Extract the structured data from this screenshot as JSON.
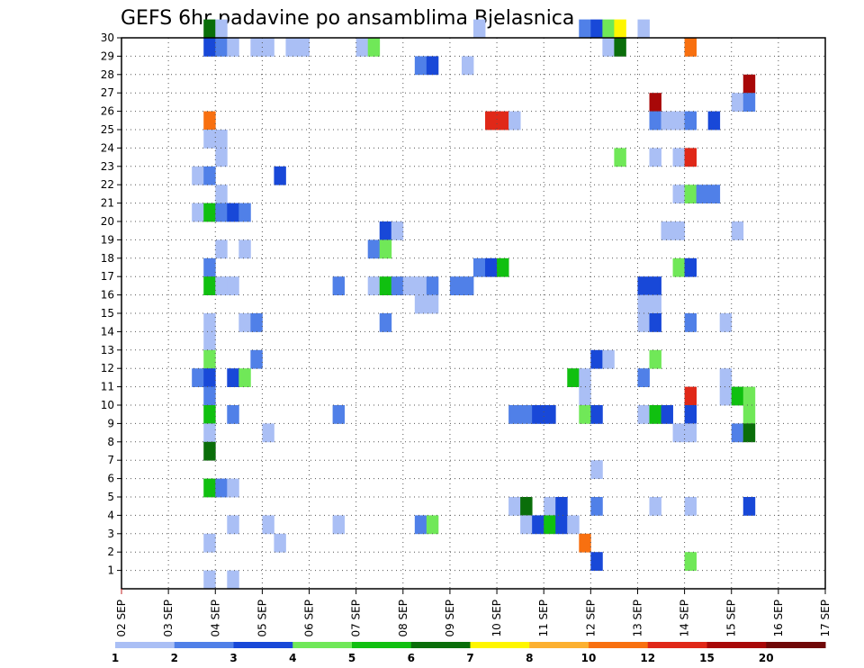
{
  "chart_data": {
    "type": "heatmap",
    "title": "GEFS 6hr padavine po ansamblima Bjelasnica",
    "xlabel": "",
    "ylabel": "",
    "x_tick_labels": [
      "02 SEP",
      "03 SEP",
      "04 SEP",
      "05 SEP",
      "06 SEP",
      "07 SEP",
      "08 SEP",
      "09 SEP",
      "10 SEP",
      "11 SEP",
      "12 SEP",
      "13 SEP",
      "14 SEP",
      "15 SEP",
      "16 SEP",
      "17 SEP"
    ],
    "y_tick_labels": [
      "1",
      "2",
      "3",
      "4",
      "5",
      "6",
      "7",
      "8",
      "9",
      "10",
      "11",
      "12",
      "13",
      "14",
      "15",
      "16",
      "17",
      "18",
      "19",
      "20",
      "21",
      "22",
      "23",
      "24",
      "25",
      "26",
      "27",
      "28",
      "29",
      "30"
    ],
    "x_range_days": [
      0,
      15
    ],
    "y_range": [
      0,
      30
    ],
    "step_per_day": 4,
    "grid": true,
    "legend": {
      "position": "bottom",
      "labels": [
        "1",
        "2",
        "3",
        "4",
        "5",
        "6",
        "7",
        "8",
        "10",
        "12",
        "15",
        "20"
      ],
      "colors": [
        "#aabff5",
        "#5080e8",
        "#1848d8",
        "#70e858",
        "#10c010",
        "#0a6e0a",
        "#fff600",
        "#fcb030",
        "#f87010",
        "#e02818",
        "#a80808",
        "#700808"
      ]
    },
    "cells": [
      [
        7,
        30,
        5
      ],
      [
        8,
        30,
        0
      ],
      [
        30,
        30,
        0
      ],
      [
        39,
        30,
        1
      ],
      [
        40,
        30,
        2
      ],
      [
        41,
        30,
        3
      ],
      [
        42,
        30,
        6
      ],
      [
        44,
        30,
        0
      ],
      [
        7,
        29,
        2
      ],
      [
        8,
        29,
        1
      ],
      [
        9,
        29,
        0
      ],
      [
        11,
        29,
        0
      ],
      [
        12,
        29,
        0
      ],
      [
        14,
        29,
        0
      ],
      [
        15,
        29,
        0
      ],
      [
        20,
        29,
        0
      ],
      [
        21,
        29,
        3
      ],
      [
        41,
        29,
        0
      ],
      [
        42,
        29,
        5
      ],
      [
        48,
        29,
        8
      ],
      [
        25,
        28,
        1
      ],
      [
        26,
        28,
        2
      ],
      [
        29,
        28,
        0
      ],
      [
        53,
        27,
        10
      ],
      [
        45,
        26,
        10
      ],
      [
        52,
        26,
        0
      ],
      [
        53,
        26,
        1
      ],
      [
        7,
        25,
        8
      ],
      [
        31,
        25,
        9
      ],
      [
        32,
        25,
        9
      ],
      [
        33,
        25,
        0
      ],
      [
        45,
        25,
        1
      ],
      [
        46,
        25,
        0
      ],
      [
        47,
        25,
        0
      ],
      [
        48,
        25,
        1
      ],
      [
        50,
        25,
        2
      ],
      [
        7,
        24,
        0
      ],
      [
        8,
        24,
        0
      ],
      [
        8,
        23,
        0
      ],
      [
        42,
        23,
        3
      ],
      [
        45,
        23,
        0
      ],
      [
        47,
        23,
        0
      ],
      [
        48,
        23,
        9
      ],
      [
        6,
        22,
        0
      ],
      [
        7,
        22,
        1
      ],
      [
        13,
        22,
        2
      ],
      [
        8,
        21,
        0
      ],
      [
        47,
        21,
        0
      ],
      [
        48,
        21,
        3
      ],
      [
        49,
        21,
        1
      ],
      [
        50,
        21,
        1
      ],
      [
        6,
        20,
        0
      ],
      [
        7,
        20,
        4
      ],
      [
        8,
        20,
        1
      ],
      [
        9,
        20,
        2
      ],
      [
        10,
        20,
        1
      ],
      [
        22,
        19,
        2
      ],
      [
        23,
        19,
        0
      ],
      [
        46,
        19,
        0
      ],
      [
        47,
        19,
        0
      ],
      [
        52,
        19,
        0
      ],
      [
        8,
        18,
        0
      ],
      [
        10,
        18,
        0
      ],
      [
        21,
        18,
        1
      ],
      [
        22,
        18,
        3
      ],
      [
        7,
        17,
        1
      ],
      [
        30,
        17,
        1
      ],
      [
        31,
        17,
        2
      ],
      [
        32,
        17,
        4
      ],
      [
        47,
        17,
        3
      ],
      [
        48,
        17,
        2
      ],
      [
        7,
        16,
        4
      ],
      [
        8,
        16,
        0
      ],
      [
        9,
        16,
        0
      ],
      [
        18,
        16,
        1
      ],
      [
        21,
        16,
        0
      ],
      [
        22,
        16,
        4
      ],
      [
        23,
        16,
        1
      ],
      [
        24,
        16,
        0
      ],
      [
        25,
        16,
        0
      ],
      [
        26,
        16,
        1
      ],
      [
        28,
        16,
        1
      ],
      [
        29,
        16,
        1
      ],
      [
        44,
        16,
        2
      ],
      [
        45,
        16,
        2
      ],
      [
        25,
        15,
        0
      ],
      [
        26,
        15,
        0
      ],
      [
        44,
        15,
        0
      ],
      [
        45,
        15,
        0
      ],
      [
        7,
        14,
        0
      ],
      [
        10,
        14,
        0
      ],
      [
        11,
        14,
        1
      ],
      [
        22,
        14,
        1
      ],
      [
        44,
        14,
        0
      ],
      [
        45,
        14,
        2
      ],
      [
        48,
        14,
        1
      ],
      [
        51,
        14,
        0
      ],
      [
        7,
        13,
        0
      ],
      [
        7,
        12,
        3
      ],
      [
        11,
        12,
        1
      ],
      [
        40,
        12,
        2
      ],
      [
        41,
        12,
        0
      ],
      [
        45,
        12,
        3
      ],
      [
        6,
        11,
        1
      ],
      [
        7,
        11,
        2
      ],
      [
        9,
        11,
        2
      ],
      [
        10,
        11,
        3
      ],
      [
        38,
        11,
        4
      ],
      [
        39,
        11,
        0
      ],
      [
        44,
        11,
        1
      ],
      [
        51,
        11,
        0
      ],
      [
        7,
        10,
        1
      ],
      [
        39,
        10,
        0
      ],
      [
        48,
        10,
        9
      ],
      [
        51,
        10,
        0
      ],
      [
        52,
        10,
        4
      ],
      [
        53,
        10,
        3
      ],
      [
        7,
        9,
        4
      ],
      [
        9,
        9,
        1
      ],
      [
        18,
        9,
        1
      ],
      [
        33,
        9,
        1
      ],
      [
        34,
        9,
        1
      ],
      [
        35,
        9,
        2
      ],
      [
        36,
        9,
        2
      ],
      [
        39,
        9,
        3
      ],
      [
        40,
        9,
        2
      ],
      [
        44,
        9,
        0
      ],
      [
        45,
        9,
        4
      ],
      [
        46,
        9,
        2
      ],
      [
        48,
        9,
        2
      ],
      [
        53,
        9,
        3
      ],
      [
        7,
        8,
        0
      ],
      [
        12,
        8,
        0
      ],
      [
        47,
        8,
        0
      ],
      [
        48,
        8,
        0
      ],
      [
        52,
        8,
        1
      ],
      [
        53,
        8,
        5
      ],
      [
        7,
        7,
        5
      ],
      [
        40,
        6,
        0
      ],
      [
        7,
        5,
        4
      ],
      [
        8,
        5,
        1
      ],
      [
        9,
        5,
        0
      ],
      [
        33,
        4,
        0
      ],
      [
        34,
        4,
        5
      ],
      [
        36,
        4,
        0
      ],
      [
        37,
        4,
        2
      ],
      [
        40,
        4,
        1
      ],
      [
        45,
        4,
        0
      ],
      [
        48,
        4,
        0
      ],
      [
        53,
        4,
        2
      ],
      [
        9,
        3,
        0
      ],
      [
        12,
        3,
        0
      ],
      [
        18,
        3,
        0
      ],
      [
        25,
        3,
        1
      ],
      [
        26,
        3,
        3
      ],
      [
        34,
        3,
        0
      ],
      [
        35,
        3,
        2
      ],
      [
        36,
        3,
        4
      ],
      [
        37,
        3,
        2
      ],
      [
        38,
        3,
        0
      ],
      [
        7,
        2,
        0
      ],
      [
        13,
        2,
        0
      ],
      [
        39,
        2,
        8
      ],
      [
        40,
        1,
        2
      ],
      [
        48,
        1,
        3
      ],
      [
        7,
        0,
        0
      ],
      [
        9,
        0,
        0
      ]
    ]
  }
}
